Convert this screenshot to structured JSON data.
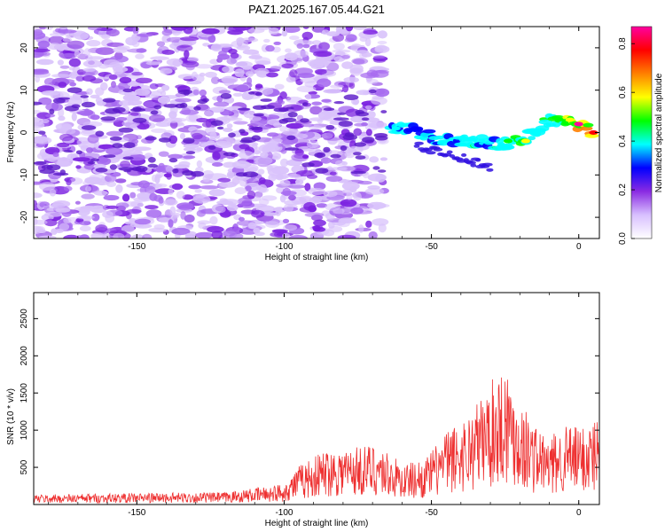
{
  "title": "PAZ1.2025.167.05.44.G21",
  "chart_data": [
    {
      "type": "heatmap",
      "xlabel": "Height of straight line (km)",
      "ylabel": "Frequency (Hz)",
      "xlim": [
        -185,
        7
      ],
      "ylim": [
        -25,
        25
      ],
      "xticks": [
        -150,
        -100,
        -50,
        0
      ],
      "yticks": [
        -20,
        -10,
        0,
        10,
        20
      ],
      "colorbar": {
        "label": "Normalized spectral amplitude",
        "range": [
          0,
          0.87
        ],
        "ticks": [
          0.0,
          0.2,
          0.4,
          0.6,
          0.8
        ],
        "colormap": [
          "#ffffff",
          "#d8c0ff",
          "#8a2be2",
          "#0000ff",
          "#00ffff",
          "#00ff00",
          "#ffff00",
          "#ff8000",
          "#ff0000",
          "#ff00a0"
        ]
      },
      "ridge": {
        "x": [
          -64,
          -60,
          -55,
          -50,
          -45,
          -40,
          -35,
          -30,
          -25,
          -20,
          -15,
          -10,
          -5,
          0,
          5
        ],
        "y": [
          1,
          1,
          0.5,
          -1,
          -2,
          -2,
          -2,
          -2.5,
          -2.5,
          -2,
          0,
          3,
          3,
          2,
          0
        ],
        "peak_amp": [
          0.35,
          0.4,
          0.3,
          0.35,
          0.4,
          0.38,
          0.45,
          0.42,
          0.5,
          0.55,
          0.45,
          0.5,
          0.6,
          0.85,
          0.8
        ]
      },
      "noise_xrange": [
        -185,
        -66
      ]
    },
    {
      "type": "line",
      "xlabel": "Height of straight line (km)",
      "ylabel": "SNR (10 * v/v)",
      "xlim": [
        -185,
        7
      ],
      "ylim": [
        0,
        2850
      ],
      "xticks": [
        -150,
        -100,
        -50,
        0
      ],
      "yticks": [
        500,
        1000,
        1500,
        2000,
        2500
      ],
      "color": "#ee3030",
      "envelope": {
        "x": [
          -185,
          -150,
          -120,
          -110,
          -100,
          -95,
          -85,
          -75,
          -68,
          -60,
          -52,
          -45,
          -38,
          -30,
          -25,
          -20,
          -15,
          -10,
          -5,
          0,
          7
        ],
        "y": [
          120,
          140,
          150,
          200,
          260,
          480,
          700,
          720,
          750,
          500,
          560,
          900,
          1100,
          1500,
          1800,
          1300,
          1000,
          800,
          1000,
          950,
          1100
        ]
      }
    }
  ]
}
